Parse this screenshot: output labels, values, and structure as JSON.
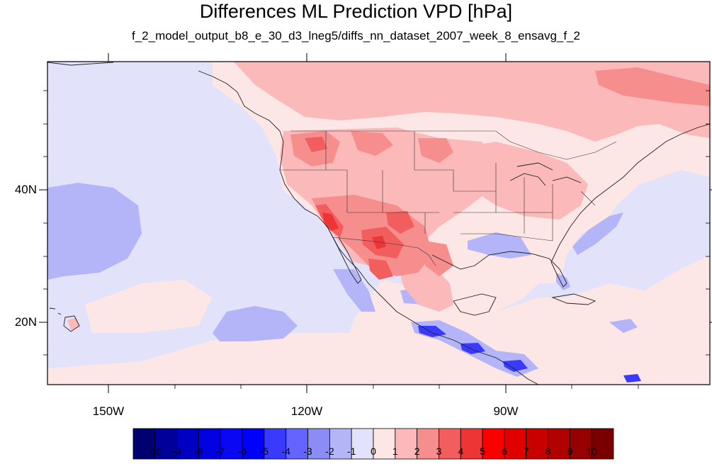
{
  "title": "Differences ML Prediction VPD [hPa]",
  "subtitle": "f_2_model_output_b8_e_30_d3_lneg5/diffs_nn_dataset_2007_week_8_ensavg_f_2",
  "lat_labels": [
    {
      "lat": 40,
      "label": "40N"
    },
    {
      "lat": 20,
      "label": "20N"
    }
  ],
  "lon_labels": [
    {
      "lon": -150,
      "label": "150W"
    },
    {
      "lon": -120,
      "label": "120W"
    },
    {
      "lon": -90,
      "label": "90W"
    }
  ],
  "extent": {
    "lon_min": -159.3,
    "lon_max": -61,
    "lat_min": 10,
    "lat_max": 58.2
  },
  "colorbar": {
    "labels": [
      "-10",
      "-9",
      "-8",
      "-7",
      "-6",
      "-5",
      "-4",
      "-3",
      "-2",
      "-1",
      "0",
      "1",
      "2",
      "3",
      "4",
      "5",
      "6",
      "7",
      "8",
      "9",
      "10"
    ],
    "colors": [
      "#000070",
      "#00009a",
      "#0000c2",
      "#0000e0",
      "#0808f5",
      "#0000ff",
      "#3a3aff",
      "#6464ff",
      "#8c8cf5",
      "#b4b4f8",
      "#e2e2fa",
      "#fde6e6",
      "#fbb9b9",
      "#f78e8e",
      "#f25e5e",
      "#ee3535",
      "#fb0000",
      "#e00000",
      "#c80000",
      "#b00000",
      "#960000",
      "#7a0000"
    ]
  },
  "legend_colors": {
    "diff_neg_1_0": "#e2e2fa",
    "diff_neg_2_1": "#b4b4f8",
    "diff_neg_3_2": "#8c8cf5",
    "diff_neg_5_4": "#3a3aff",
    "diff_0_1": "#fde6e6",
    "diff_1_2": "#fbb9b9",
    "diff_2_3": "#f78e8e",
    "diff_3_4": "#f25e5e",
    "diff_4_5": "#ee3535"
  }
}
